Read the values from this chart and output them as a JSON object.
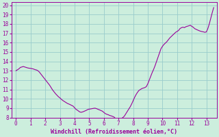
{
  "xlabel": "Windchill (Refroidissement éolien,°C)",
  "xlim": [
    -0.3,
    13.7
  ],
  "ylim": [
    8,
    20.3
  ],
  "yticks": [
    8,
    9,
    10,
    11,
    12,
    13,
    14,
    15,
    16,
    17,
    18,
    19,
    20
  ],
  "xticks": [
    0,
    1,
    2,
    3,
    4,
    5,
    6,
    7,
    8,
    9,
    10,
    11,
    12,
    13
  ],
  "line_color": "#990099",
  "bg_color": "#cceedd",
  "grid_color": "#99cccc",
  "x": [
    0.0,
    0.1,
    0.2,
    0.3,
    0.4,
    0.5,
    0.6,
    0.7,
    0.8,
    0.9,
    1.0,
    1.1,
    1.2,
    1.3,
    1.4,
    1.5,
    1.6,
    1.7,
    1.8,
    1.9,
    2.0,
    2.1,
    2.2,
    2.3,
    2.4,
    2.5,
    2.6,
    2.7,
    2.8,
    2.9,
    3.0,
    3.1,
    3.2,
    3.3,
    3.4,
    3.5,
    3.6,
    3.7,
    3.8,
    3.9,
    4.0,
    4.1,
    4.2,
    4.25,
    4.3,
    4.35,
    4.4,
    4.45,
    4.5,
    4.55,
    4.6,
    4.65,
    4.7,
    4.75,
    4.8,
    4.9,
    5.0,
    5.1,
    5.2,
    5.3,
    5.4,
    5.5,
    5.6,
    5.7,
    5.8,
    5.9,
    6.0,
    6.1,
    6.2,
    6.3,
    6.4,
    6.5,
    6.6,
    6.7,
    6.8,
    6.9,
    7.0,
    7.1,
    7.2,
    7.3,
    7.4,
    7.5,
    7.6,
    7.7,
    7.8,
    7.9,
    8.0,
    8.1,
    8.2,
    8.3,
    8.4,
    8.5,
    8.6,
    8.7,
    8.8,
    8.9,
    9.0,
    9.1,
    9.2,
    9.3,
    9.4,
    9.5,
    9.6,
    9.7,
    9.8,
    9.9,
    10.0,
    10.1,
    10.2,
    10.3,
    10.4,
    10.5,
    10.6,
    10.7,
    10.8,
    10.9,
    11.0,
    11.1,
    11.2,
    11.3,
    11.4,
    11.5,
    11.6,
    11.7,
    11.8,
    11.9,
    12.0,
    12.1,
    12.2,
    12.3,
    12.4,
    12.5,
    12.6,
    12.7,
    12.8,
    12.9,
    13.0,
    13.1,
    13.2,
    13.3,
    13.4,
    13.5
  ],
  "y": [
    13.0,
    13.1,
    13.2,
    13.35,
    13.4,
    13.45,
    13.4,
    13.35,
    13.3,
    13.27,
    13.25,
    13.22,
    13.18,
    13.12,
    13.08,
    13.0,
    12.85,
    12.65,
    12.45,
    12.25,
    12.05,
    11.85,
    11.65,
    11.45,
    11.2,
    10.95,
    10.75,
    10.55,
    10.38,
    10.22,
    10.1,
    9.95,
    9.82,
    9.72,
    9.62,
    9.52,
    9.45,
    9.38,
    9.3,
    9.22,
    9.05,
    8.88,
    8.78,
    8.72,
    8.65,
    8.6,
    8.58,
    8.56,
    8.58,
    8.6,
    8.63,
    8.66,
    8.7,
    8.73,
    8.77,
    8.85,
    8.9,
    8.92,
    8.95,
    8.98,
    9.0,
    8.95,
    8.88,
    8.82,
    8.75,
    8.68,
    8.55,
    8.42,
    8.35,
    8.3,
    8.22,
    8.18,
    8.12,
    8.05,
    7.9,
    7.82,
    7.78,
    7.8,
    7.9,
    8.0,
    8.15,
    8.4,
    8.65,
    8.9,
    9.15,
    9.45,
    9.8,
    10.15,
    10.45,
    10.7,
    10.9,
    11.0,
    11.1,
    11.15,
    11.2,
    11.3,
    11.6,
    12.0,
    12.4,
    12.8,
    13.15,
    13.55,
    14.0,
    14.45,
    14.9,
    15.35,
    15.6,
    15.8,
    15.95,
    16.1,
    16.3,
    16.5,
    16.65,
    16.8,
    16.95,
    17.1,
    17.2,
    17.3,
    17.5,
    17.6,
    17.65,
    17.6,
    17.7,
    17.75,
    17.8,
    17.85,
    17.75,
    17.65,
    17.5,
    17.42,
    17.35,
    17.28,
    17.22,
    17.18,
    17.15,
    17.1,
    17.15,
    17.5,
    18.0,
    18.6,
    19.2,
    19.75
  ]
}
